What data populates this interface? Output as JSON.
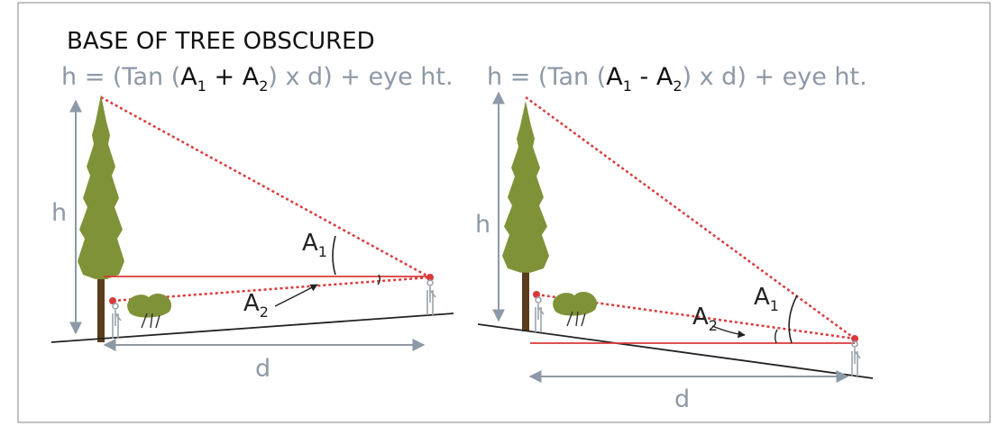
{
  "title": "BASE OF TREE OBSCURED",
  "left": {
    "formula": {
      "before": "h = (Tan (",
      "angle1": {
        "letter": "A",
        "sub": "1"
      },
      "operator": " + ",
      "angle2": {
        "letter": "A",
        "sub": "2"
      },
      "after": ") x d) + eye ht."
    },
    "height_label": "h",
    "distance_label": "d",
    "angle1": {
      "letter": "A",
      "sub": "1"
    },
    "angle2": {
      "letter": "A",
      "sub": "2"
    }
  },
  "right": {
    "formula": {
      "before": "h = (Tan (",
      "angle1": {
        "letter": "A",
        "sub": "1"
      },
      "operator": " - ",
      "angle2": {
        "letter": "A",
        "sub": "2"
      },
      "after": ") x d) + eye ht."
    },
    "height_label": "h",
    "distance_label": "d",
    "angle1": {
      "letter": "A",
      "sub": "1"
    },
    "angle2": {
      "letter": "A",
      "sub": "2"
    }
  }
}
